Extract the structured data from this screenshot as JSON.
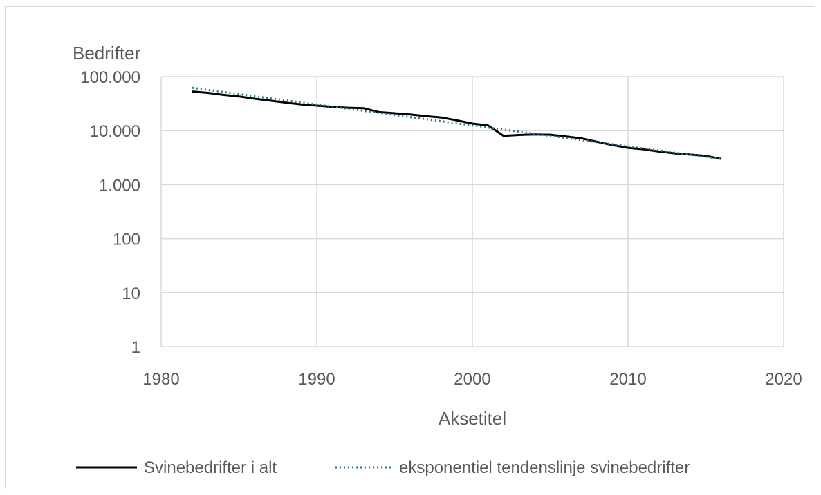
{
  "chart_data": {
    "type": "line",
    "ylabel": "Bedrifter",
    "xlabel": "Aksetitel",
    "y_scale": "log",
    "ylim": [
      1,
      100000
    ],
    "y_ticks": [
      1,
      10,
      100,
      1000,
      10000,
      100000
    ],
    "y_tick_labels": [
      "1",
      "10",
      "100",
      "1.000",
      "10.000",
      "100.000"
    ],
    "xlim": [
      1980,
      2020
    ],
    "x_ticks": [
      1980,
      1990,
      2000,
      2010,
      2020
    ],
    "x_tick_labels": [
      "1980",
      "1990",
      "2000",
      "2010",
      "2020"
    ],
    "grid": true,
    "legend_position": "bottom",
    "series": [
      {
        "name": "Svinebedrifter i alt",
        "color": "#000000",
        "style": "solid",
        "x": [
          1982,
          1983,
          1984,
          1985,
          1986,
          1987,
          1988,
          1989,
          1990,
          1991,
          1992,
          1993,
          1994,
          1995,
          1996,
          1997,
          1998,
          1999,
          2000,
          2001,
          2002,
          2003,
          2004,
          2005,
          2006,
          2007,
          2008,
          2009,
          2010,
          2011,
          2012,
          2013,
          2014,
          2015,
          2016
        ],
        "values": [
          53000,
          50000,
          46000,
          43000,
          39000,
          36000,
          33000,
          30500,
          29000,
          27500,
          26500,
          26000,
          22000,
          21000,
          20000,
          18500,
          17500,
          15500,
          13500,
          12500,
          8000,
          8300,
          8500,
          8400,
          7800,
          7200,
          6200,
          5400,
          4800,
          4500,
          4100,
          3800,
          3600,
          3400,
          3000
        ]
      },
      {
        "name": "eksponentiel tendenslinje svinebedrifter",
        "color": "#1f7a8c",
        "style": "dotted",
        "x": [
          1982,
          2016
        ],
        "values": [
          62000,
          3000
        ]
      }
    ]
  }
}
